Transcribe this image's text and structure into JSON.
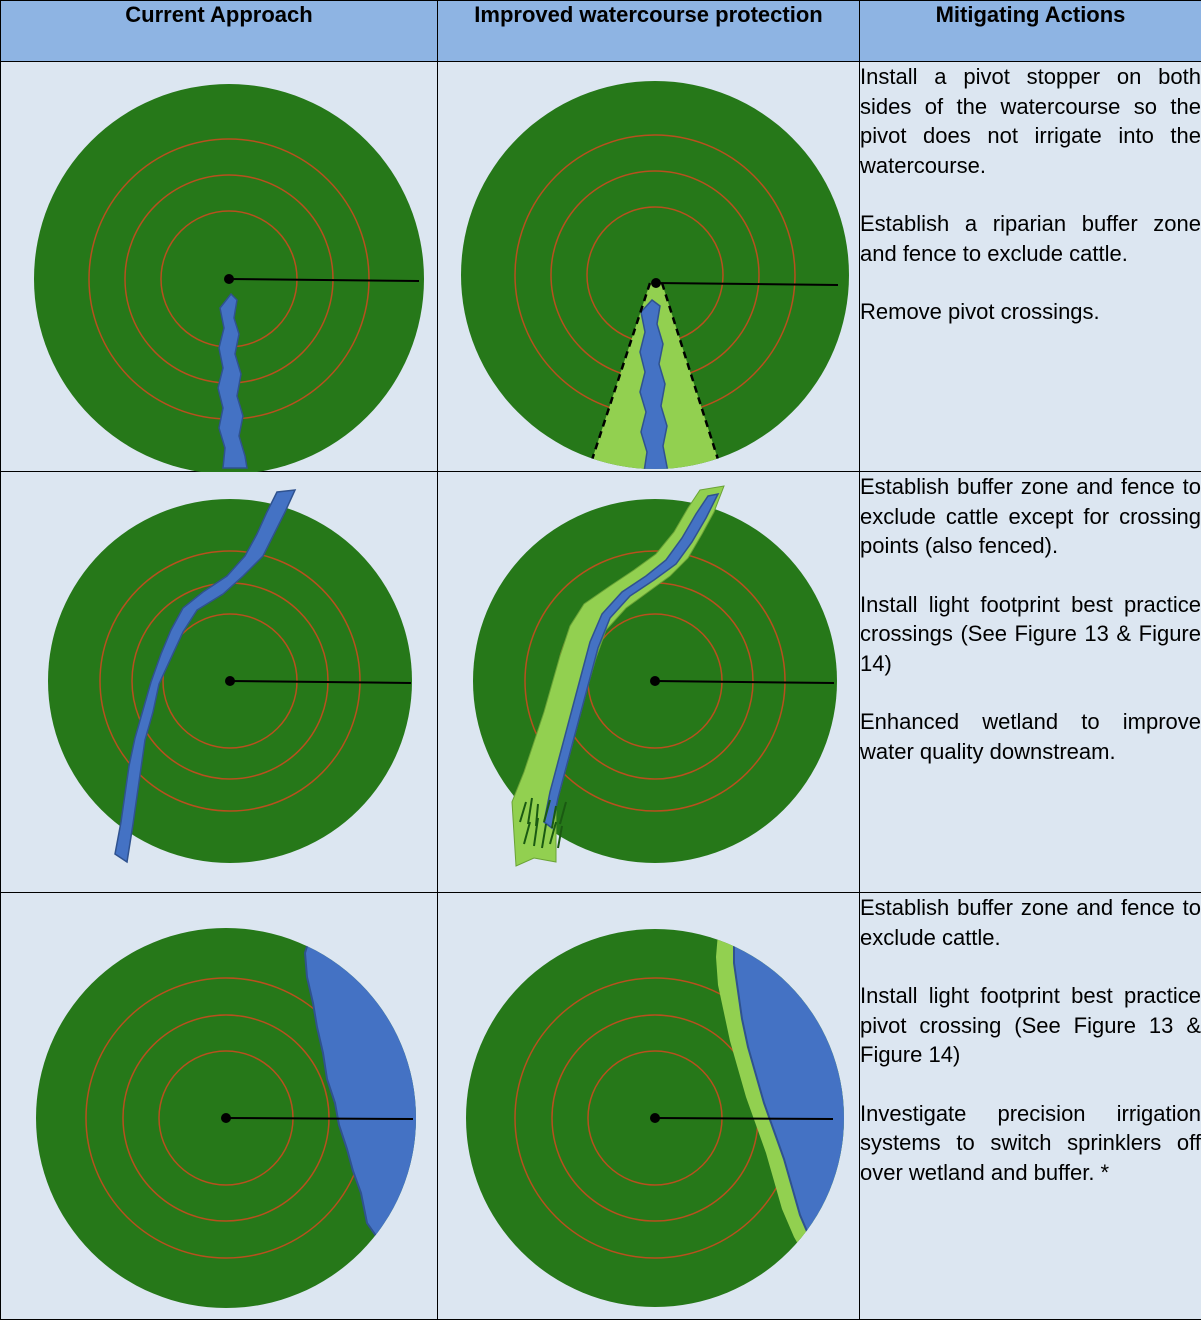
{
  "headers": {
    "col1": "Current Approach",
    "col2": "Improved watercourse protection",
    "col3": "Mitigating Actions"
  },
  "rows": [
    {
      "actions": [
        "Install a pivot stopper on both sides of the watercourse so the pivot does not irrigate into the watercourse.",
        "Establish a riparian buffer zone and fence to exclude cattle.",
        "Remove pivot crossings."
      ]
    },
    {
      "actions": [
        "Establish buffer zone and fence to exclude cattle except for crossing points (also fenced).",
        "Install light footprint best practice crossings (See Figure 13 & Figure 14)",
        "Enhanced wetland to improve water quality downstream."
      ]
    },
    {
      "actions": [
        "Establish buffer zone and fence to exclude cattle.",
        "Install light footprint best practice pivot crossing (See Figure 13 & Figure 14)",
        "Investigate precision irrigation systems to switch sprinklers off over wetland and buffer. *"
      ]
    }
  ],
  "colors": {
    "field": "#267819",
    "ring": "#b8501e",
    "water": "#4472c4",
    "buffer": "#92d050",
    "header_bg": "#8eb4e3",
    "cell_bg": "#dce6f1"
  }
}
